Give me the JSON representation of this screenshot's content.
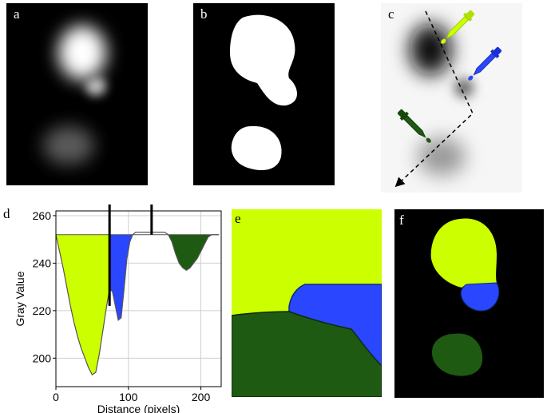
{
  "panels": {
    "a": "a",
    "b": "b",
    "c": "c",
    "d": "d",
    "e": "e",
    "f": "f"
  },
  "colors": {
    "lime": "#ccff00",
    "blue": "#2a46ff",
    "green": "#1e5a12",
    "dark_outline": "#0d2b7a",
    "black": "#000000",
    "white": "#ffffff"
  },
  "icons": [
    "lime-dropper-icon",
    "blue-dropper-icon",
    "green-dropper-icon",
    "dashed-path-arrow-icon"
  ],
  "chart_data": {
    "type": "area",
    "xlabel": "Distance (pixels)",
    "ylabel": "Gray Value",
    "xlim": [
      0,
      228
    ],
    "ylim": [
      188,
      262
    ],
    "xticks": [
      0,
      100,
      200
    ],
    "yticks": [
      200,
      220,
      240,
      260
    ],
    "grid": true,
    "markers_x": [
      74,
      132
    ],
    "regions": [
      {
        "color": "lime",
        "x_range": [
          0,
          74
        ]
      },
      {
        "color": "blue",
        "x_range": [
          74,
          132
        ]
      },
      {
        "color": "green",
        "x_range": [
          132,
          228
        ]
      }
    ],
    "profile": {
      "x": [
        0,
        5,
        10,
        15,
        20,
        25,
        30,
        35,
        40,
        45,
        50,
        55,
        60,
        65,
        70,
        74,
        78,
        82,
        86,
        90,
        94,
        98,
        102,
        106,
        110,
        115,
        120,
        125,
        130,
        135,
        140,
        145,
        150,
        155,
        160,
        165,
        170,
        175,
        180,
        185,
        190,
        195,
        200,
        205,
        210,
        215,
        220,
        225
      ],
      "y": [
        252,
        245,
        238,
        230,
        222,
        215,
        209,
        204,
        200,
        196,
        193,
        194,
        202,
        212,
        222,
        229,
        228,
        222,
        216,
        217,
        229,
        242,
        249,
        252,
        253,
        253,
        253,
        253,
        253,
        253,
        253,
        253,
        253,
        252,
        249,
        244,
        240,
        238,
        237,
        238,
        240,
        242,
        245,
        248,
        251,
        252,
        252,
        252
      ]
    }
  }
}
